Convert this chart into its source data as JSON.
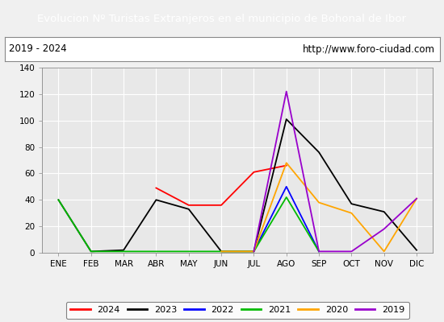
{
  "title": "Evolucion Nº Turistas Extranjeros en el municipio de Bohonal de Ibor",
  "subtitle_left": "2019 - 2024",
  "subtitle_right": "http://www.foro-ciudad.com",
  "months": [
    "ENE",
    "FEB",
    "MAR",
    "ABR",
    "MAY",
    "JUN",
    "JUL",
    "AGO",
    "SEP",
    "OCT",
    "NOV",
    "DIC"
  ],
  "ylim": [
    0,
    140
  ],
  "yticks": [
    0,
    20,
    40,
    60,
    80,
    100,
    120,
    140
  ],
  "series": {
    "2024": {
      "color": "#ff0000",
      "data": [
        null,
        null,
        null,
        49,
        36,
        36,
        61,
        66,
        null,
        null,
        null,
        null
      ]
    },
    "2023": {
      "color": "#000000",
      "data": [
        40,
        1,
        2,
        40,
        33,
        1,
        1,
        101,
        76,
        37,
        31,
        2
      ]
    },
    "2022": {
      "color": "#0000ff",
      "data": [
        null,
        null,
        null,
        null,
        null,
        null,
        1,
        50,
        1,
        null,
        null,
        null
      ]
    },
    "2021": {
      "color": "#00bb00",
      "data": [
        40,
        1,
        null,
        null,
        null,
        null,
        1,
        42,
        1,
        null,
        null,
        null
      ]
    },
    "2020": {
      "color": "#ffa500",
      "data": [
        null,
        null,
        null,
        null,
        null,
        1,
        1,
        68,
        38,
        30,
        1,
        41
      ]
    },
    "2019": {
      "color": "#9900cc",
      "data": [
        null,
        null,
        null,
        null,
        null,
        null,
        1,
        122,
        1,
        1,
        18,
        41
      ]
    }
  },
  "legend_order": [
    "2024",
    "2023",
    "2022",
    "2021",
    "2020",
    "2019"
  ],
  "title_bg": "#4da6d9",
  "title_color": "#ffffff",
  "plot_bg": "#e8e8e8",
  "outer_bg": "#f0f0f0",
  "grid_color": "#ffffff",
  "subtitle_box_color": "#cccccc"
}
